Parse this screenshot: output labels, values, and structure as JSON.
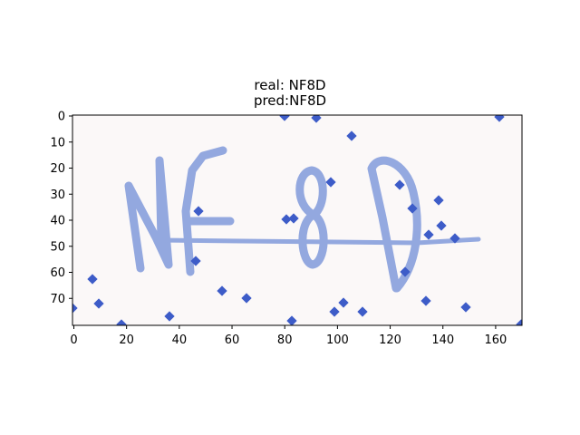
{
  "figure": {
    "title_line1": "real: NF8D",
    "title_line2": "pred:NF8D"
  },
  "image": {
    "description_colors": {
      "background": "#fbf8f8",
      "stroke": "#8ea4de",
      "noise": "#3d5cc8"
    }
  },
  "axes": {
    "x_ticks": [
      "0",
      "20",
      "40",
      "60",
      "80",
      "100",
      "120",
      "140",
      "160"
    ],
    "x_tick_values": [
      0,
      20,
      40,
      60,
      80,
      100,
      120,
      140,
      160
    ],
    "y_ticks": [
      "0",
      "10",
      "20",
      "30",
      "40",
      "50",
      "60",
      "70"
    ],
    "y_tick_values": [
      0,
      10,
      20,
      30,
      40,
      50,
      60,
      70
    ],
    "xlim": [
      0,
      170
    ],
    "ylim": [
      80,
      0
    ]
  }
}
